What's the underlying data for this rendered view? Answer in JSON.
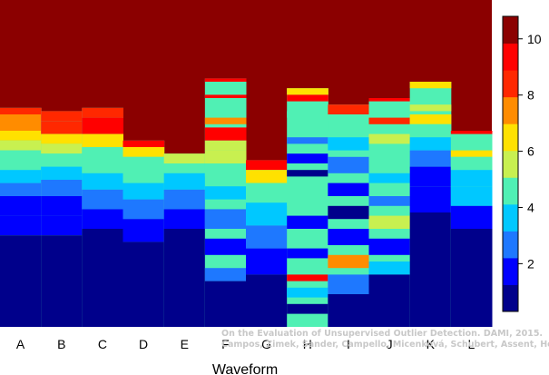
{
  "chart_data": {
    "type": "heatmap",
    "xlabel": "Waveform",
    "ylabel": "",
    "title": "",
    "categories": [
      "A",
      "B",
      "C",
      "D",
      "E",
      "F",
      "G",
      "H",
      "I",
      "J",
      "K",
      "L"
    ],
    "colorbar": {
      "min": 0.3,
      "max": 10.8,
      "ticks": [
        2,
        4,
        6,
        8,
        10
      ],
      "colors": [
        "#00008B",
        "#0000FF",
        "#1E78FF",
        "#00C8FF",
        "#50F0B4",
        "#C8F050",
        "#FFE100",
        "#FF8C00",
        "#FF2800",
        "#FF0000",
        "#8B0000"
      ]
    },
    "columns": [
      {
        "category": "A",
        "top_rank": 0.33,
        "segments": [
          [
            0.33,
            0.35,
            8.5
          ],
          [
            0.35,
            0.4,
            7.5
          ],
          [
            0.4,
            0.43,
            6.5
          ],
          [
            0.43,
            0.46,
            5.8
          ],
          [
            0.46,
            0.49,
            5.0
          ],
          [
            0.49,
            0.52,
            4.3
          ],
          [
            0.52,
            0.56,
            3.5
          ],
          [
            0.56,
            0.6,
            2.8
          ],
          [
            0.6,
            0.66,
            2.2
          ],
          [
            0.66,
            0.72,
            1.6
          ],
          [
            0.72,
            1.0,
            1.0
          ]
        ]
      },
      {
        "category": "B",
        "top_rank": 0.34,
        "segments": [
          [
            0.34,
            0.37,
            8.5
          ],
          [
            0.37,
            0.41,
            8.0
          ],
          [
            0.41,
            0.44,
            6.8
          ],
          [
            0.44,
            0.47,
            5.5
          ],
          [
            0.47,
            0.51,
            4.6
          ],
          [
            0.51,
            0.55,
            3.8
          ],
          [
            0.55,
            0.6,
            3.0
          ],
          [
            0.6,
            0.66,
            2.2
          ],
          [
            0.66,
            0.72,
            1.6
          ],
          [
            0.72,
            1.0,
            1.0
          ]
        ]
      },
      {
        "category": "C",
        "top_rank": 0.33,
        "segments": [
          [
            0.33,
            0.36,
            8.8
          ],
          [
            0.36,
            0.41,
            9.0
          ],
          [
            0.41,
            0.45,
            6.5
          ],
          [
            0.45,
            0.49,
            5.0
          ],
          [
            0.49,
            0.53,
            4.2
          ],
          [
            0.53,
            0.58,
            3.2
          ],
          [
            0.58,
            0.64,
            2.4
          ],
          [
            0.64,
            0.7,
            1.7
          ],
          [
            0.7,
            1.0,
            1.0
          ]
        ]
      },
      {
        "category": "D",
        "top_rank": 0.43,
        "segments": [
          [
            0.43,
            0.45,
            9.0
          ],
          [
            0.45,
            0.48,
            6.5
          ],
          [
            0.48,
            0.51,
            5.0
          ],
          [
            0.51,
            0.56,
            4.2
          ],
          [
            0.56,
            0.61,
            3.4
          ],
          [
            0.61,
            0.67,
            2.4
          ],
          [
            0.67,
            0.74,
            1.7
          ],
          [
            0.74,
            1.0,
            1.0
          ]
        ]
      },
      {
        "category": "E",
        "top_rank": 0.47,
        "segments": [
          [
            0.47,
            0.5,
            6.0
          ],
          [
            0.5,
            0.53,
            4.8
          ],
          [
            0.53,
            0.58,
            4.0
          ],
          [
            0.58,
            0.64,
            3.0
          ],
          [
            0.64,
            0.7,
            2.0
          ],
          [
            0.7,
            1.0,
            1.0
          ]
        ]
      },
      {
        "category": "F",
        "top_rank": 0.24,
        "segments": [
          [
            0.24,
            0.25,
            9.0
          ],
          [
            0.29,
            0.3,
            9.0
          ],
          [
            0.36,
            0.38,
            7.0
          ],
          [
            0.39,
            0.43,
            9.0
          ],
          [
            0.43,
            0.46,
            6.0
          ],
          [
            0.46,
            0.5,
            5.5
          ],
          [
            0.5,
            0.54,
            5.0
          ],
          [
            0.57,
            0.61,
            3.5
          ],
          [
            0.64,
            0.7,
            2.5
          ],
          [
            0.73,
            0.78,
            1.8
          ],
          [
            0.82,
            0.86,
            3.0
          ],
          [
            0.86,
            1.0,
            1.0
          ]
        ]
      },
      {
        "category": "G",
        "top_rank": 0.49,
        "segments": [
          [
            0.49,
            0.52,
            9.0
          ],
          [
            0.52,
            0.56,
            6.5
          ],
          [
            0.56,
            0.62,
            5.0
          ],
          [
            0.62,
            0.69,
            4.0
          ],
          [
            0.69,
            0.76,
            3.0
          ],
          [
            0.76,
            0.84,
            2.0
          ],
          [
            0.84,
            1.0,
            1.0
          ]
        ]
      },
      {
        "category": "H",
        "top_rank": 0.27,
        "segments": [
          [
            0.27,
            0.29,
            6.5
          ],
          [
            0.29,
            0.31,
            9.0
          ],
          [
            0.34,
            0.36,
            5.0
          ],
          [
            0.42,
            0.44,
            3.0
          ],
          [
            0.47,
            0.5,
            2.0
          ],
          [
            0.52,
            0.54,
            1.2
          ],
          [
            0.6,
            0.63,
            5.0
          ],
          [
            0.66,
            0.7,
            2.2
          ],
          [
            0.76,
            0.79,
            1.5
          ],
          [
            0.84,
            0.86,
            9.0
          ],
          [
            0.88,
            0.91,
            4.0
          ],
          [
            0.93,
            0.96,
            1.0
          ]
        ]
      },
      {
        "category": "I",
        "top_rank": 0.32,
        "segments": [
          [
            0.32,
            0.35,
            8.8
          ],
          [
            0.37,
            0.4,
            5.0
          ],
          [
            0.42,
            0.46,
            4.0
          ],
          [
            0.48,
            0.53,
            2.5
          ],
          [
            0.56,
            0.6,
            1.8
          ],
          [
            0.63,
            0.67,
            1.2
          ],
          [
            0.7,
            0.75,
            2.2
          ],
          [
            0.78,
            0.82,
            7.5
          ],
          [
            0.84,
            0.9,
            3.0
          ],
          [
            0.9,
            1.0,
            1.0
          ]
        ]
      },
      {
        "category": "J",
        "top_rank": 0.3,
        "segments": [
          [
            0.3,
            0.31,
            9.0
          ],
          [
            0.36,
            0.38,
            8.5
          ],
          [
            0.41,
            0.44,
            6.0
          ],
          [
            0.47,
            0.5,
            4.5
          ],
          [
            0.53,
            0.56,
            3.5
          ],
          [
            0.6,
            0.63,
            2.5
          ],
          [
            0.66,
            0.7,
            5.5
          ],
          [
            0.73,
            0.78,
            2.0
          ],
          [
            0.8,
            0.84,
            4.0
          ],
          [
            0.84,
            1.0,
            1.0
          ]
        ]
      },
      {
        "category": "K",
        "top_rank": 0.25,
        "segments": [
          [
            0.25,
            0.27,
            6.5
          ],
          [
            0.32,
            0.34,
            6.0
          ],
          [
            0.35,
            0.38,
            6.5
          ],
          [
            0.38,
            0.42,
            5.0
          ],
          [
            0.42,
            0.46,
            4.0
          ],
          [
            0.46,
            0.51,
            3.0
          ],
          [
            0.51,
            0.57,
            2.2
          ],
          [
            0.57,
            0.65,
            1.5
          ],
          [
            0.65,
            1.0,
            1.0
          ]
        ]
      },
      {
        "category": "L",
        "top_rank": 0.4,
        "segments": [
          [
            0.4,
            0.41,
            9.0
          ],
          [
            0.46,
            0.48,
            6.5
          ],
          [
            0.48,
            0.52,
            5.0
          ],
          [
            0.52,
            0.57,
            4.0
          ],
          [
            0.57,
            0.63,
            3.2
          ],
          [
            0.63,
            0.7,
            2.2
          ],
          [
            0.7,
            1.0,
            1.0
          ]
        ]
      }
    ],
    "grid": false,
    "legend": "right"
  },
  "watermark": {
    "line1": "On the Evaluation of Unsupervised Outlier Detection. DAMI, 2015.",
    "line2": "Campos, Zimek, Sander, Campello, Micenková, Schubert, Assent, Houle"
  }
}
